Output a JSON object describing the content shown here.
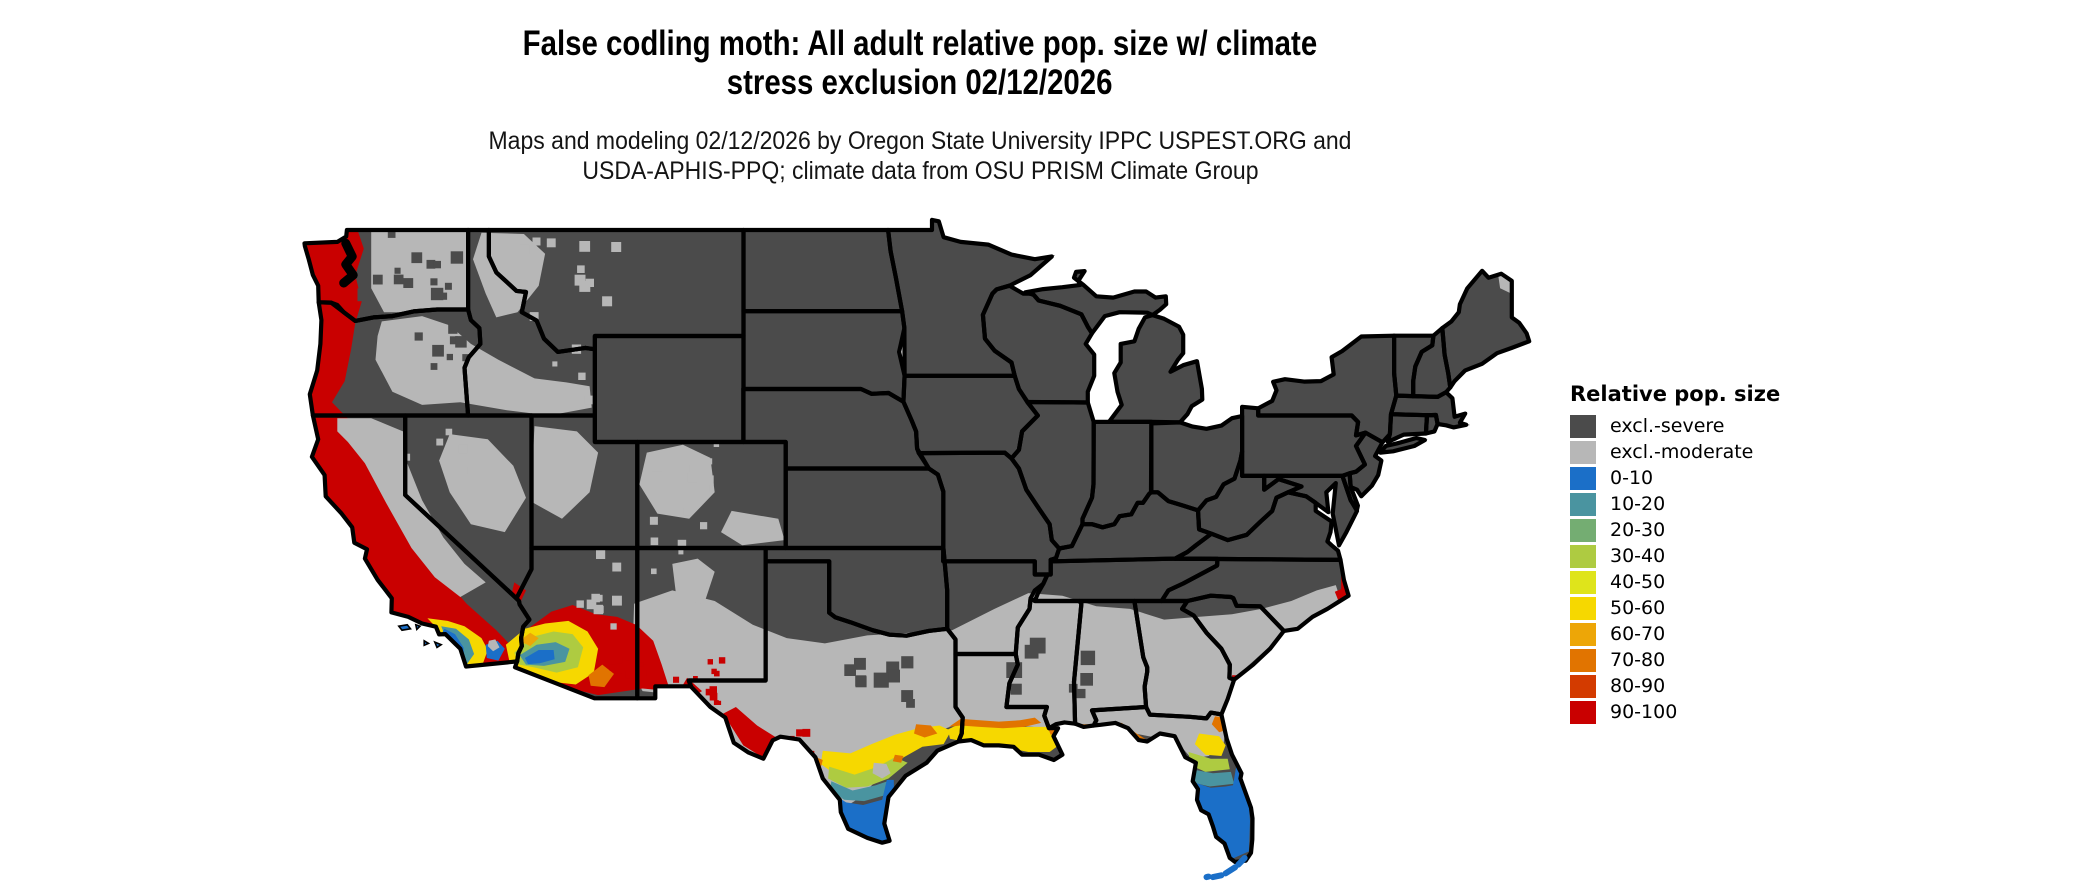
{
  "header": {
    "title_line1": "False codling moth: All adult relative pop. size w/ climate",
    "title_line2": "stress exclusion 02/12/2026",
    "credit_line1": "Maps and modeling 02/12/2026 by Oregon State University IPPC USPEST.ORG and",
    "credit_line2": "USDA-APHIS-PPQ; climate data from OSU PRISM Climate Group"
  },
  "legend": {
    "title": "Relative pop. size",
    "items": [
      {
        "key": "excl_severe",
        "label": "excl.-severe",
        "color": "#4b4b4b"
      },
      {
        "key": "excl_moderate",
        "label": "excl.-moderate",
        "color": "#b7b7b7"
      },
      {
        "key": "v0",
        "label": "0-10",
        "color": "#1b6fc8"
      },
      {
        "key": "v10",
        "label": "10-20",
        "color": "#4a94a0"
      },
      {
        "key": "v20",
        "label": "20-30",
        "color": "#74ad72"
      },
      {
        "key": "v30",
        "label": "30-40",
        "color": "#aecb41"
      },
      {
        "key": "v40",
        "label": "40-50",
        "color": "#dfe41b"
      },
      {
        "key": "v50",
        "label": "50-60",
        "color": "#f6d800"
      },
      {
        "key": "v60",
        "label": "60-70",
        "color": "#eda607"
      },
      {
        "key": "v70",
        "label": "70-80",
        "color": "#e17400"
      },
      {
        "key": "v80",
        "label": "80-90",
        "color": "#d33b00"
      },
      {
        "key": "v90",
        "label": "90-100",
        "color": "#c90000"
      }
    ]
  },
  "map": {
    "region": "Contiguous United States",
    "water_color": "#ffffff",
    "border_color": "#000000"
  }
}
